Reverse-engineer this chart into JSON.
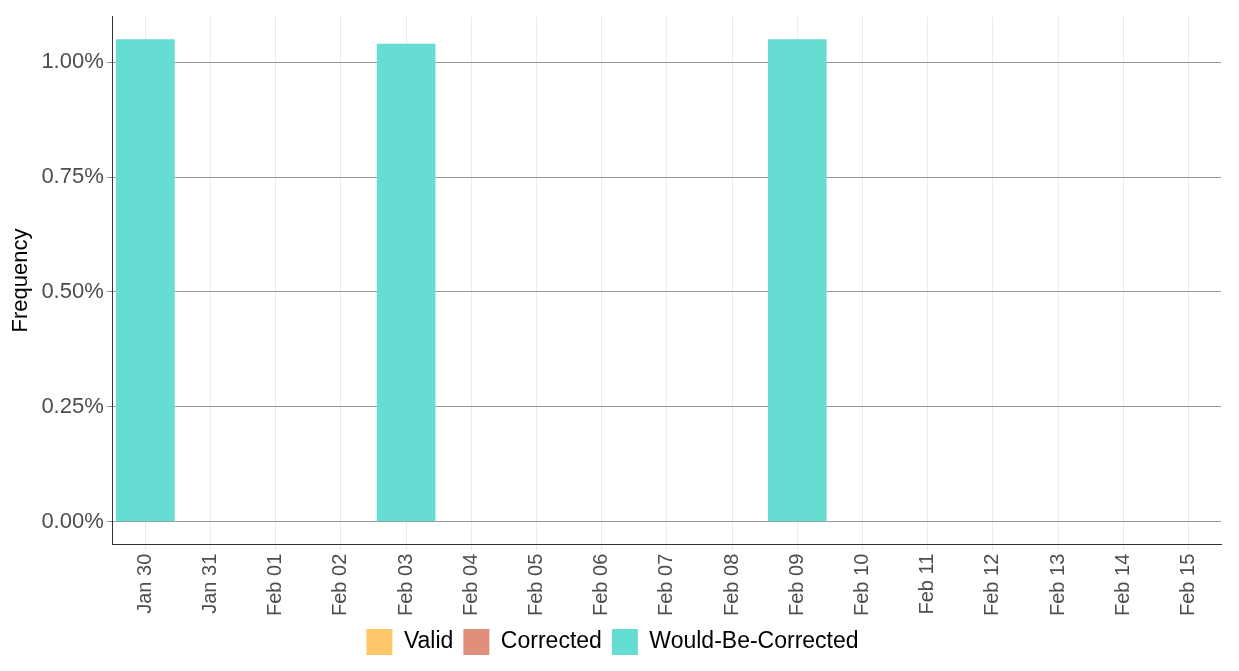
{
  "chart_data": {
    "type": "bar",
    "stacked": true,
    "ylabel": "Frequency",
    "categories": [
      "Jan 30",
      "Jan 31",
      "Feb 01",
      "Feb 02",
      "Feb 03",
      "Feb 04",
      "Feb 05",
      "Feb 06",
      "Feb 07",
      "Feb 08",
      "Feb 09",
      "Feb 10",
      "Feb 11",
      "Feb 12",
      "Feb 13",
      "Feb 14",
      "Feb 15"
    ],
    "series": [
      {
        "name": "Valid",
        "color": "#fec868",
        "values": [
          0,
          0,
          0,
          0,
          0,
          0,
          0,
          0,
          0,
          0,
          0,
          0,
          0,
          0,
          0,
          0,
          0
        ]
      },
      {
        "name": "Corrected",
        "color": "#e0907a",
        "values": [
          0,
          0,
          0,
          0,
          0,
          0,
          0,
          0,
          0,
          0,
          0,
          0,
          0,
          0,
          0,
          0,
          0
        ]
      },
      {
        "name": "Would-Be-Corrected",
        "color": "#66ddd2",
        "values": [
          1.05,
          0,
          0,
          0,
          1.04,
          0,
          0,
          0,
          0,
          0,
          1.05,
          0,
          0,
          0,
          0,
          0,
          0
        ]
      }
    ],
    "ylim": [
      -0.05,
      1.1
    ],
    "yticks": [
      {
        "value": 0,
        "label": "0.00%"
      },
      {
        "value": 0.25,
        "label": "0.25%"
      },
      {
        "value": 0.5,
        "label": "0.50%"
      },
      {
        "value": 0.75,
        "label": "0.75%"
      },
      {
        "value": 1,
        "label": "1.00%"
      }
    ],
    "grid": true,
    "legend": "bottom"
  }
}
